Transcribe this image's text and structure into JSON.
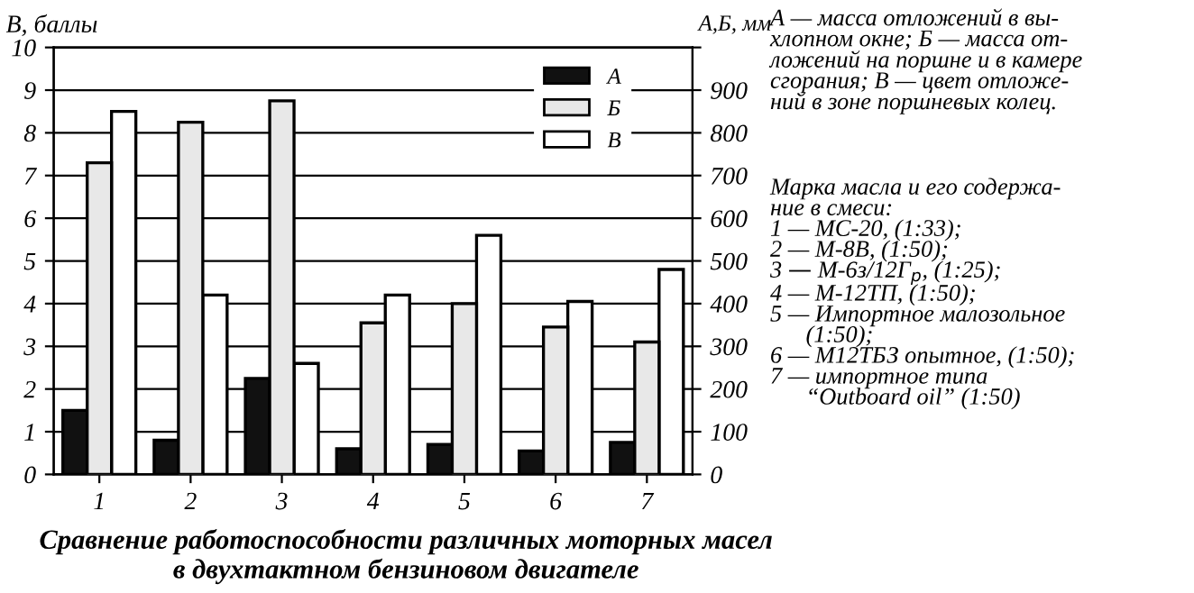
{
  "chart_data": {
    "type": "bar",
    "title": "Сравнение работоспособности различных моторных масел\nв двухтактном бензиновом двигателе",
    "ylabel": "В, баллы",
    "y2label": "А,Б, мм",
    "categories": [
      "1",
      "2",
      "3",
      "4",
      "5",
      "6",
      "7"
    ],
    "series": [
      {
        "name": "А",
        "color": "#111111",
        "axis": "y2",
        "values": [
          150,
          80,
          225,
          60,
          70,
          55,
          75
        ]
      },
      {
        "name": "Б",
        "color": "#e8e8e8",
        "axis": "y2",
        "values": [
          730,
          825,
          875,
          355,
          400,
          345,
          310
        ]
      },
      {
        "name": "В",
        "color": "#ffffff",
        "values": [
          8.5,
          4.2,
          2.6,
          4.2,
          5.6,
          4.05,
          4.8
        ]
      }
    ],
    "ylim": [
      0,
      10
    ],
    "yticks": [
      0,
      1,
      2,
      3,
      4,
      5,
      6,
      7,
      8,
      9,
      10
    ],
    "y2lim": [
      0,
      1000
    ],
    "y2ticks": [
      0,
      100,
      200,
      300,
      400,
      500,
      600,
      700,
      800,
      900,
      {
        "value": 1000,
        "label": null
      }
    ],
    "grid": "y",
    "legend": "top right",
    "annotations": [
      "А — масса отложений в вы-\nхлопном окне; Б — масса от-\nложений на поршне и в камере\nсгорания; В — цвет отложе-\nний в зоне поршневых колец.",
      "Марка масла и его содержа-\nние в смеси:\n1 — МС-20, (1:33);\n2 — М-8В, (1:50);\n3 — М-6з/12Г$_{р}$, (1:25);\n4 — М-12ТП, (1:50);\n5 — Импортное малозольное\n      (1:50);\n6 — М12ТБЗ опытное, (1:50);\n7 — импортное типа\n      “Outboard oil” (1:50)"
    ]
  }
}
